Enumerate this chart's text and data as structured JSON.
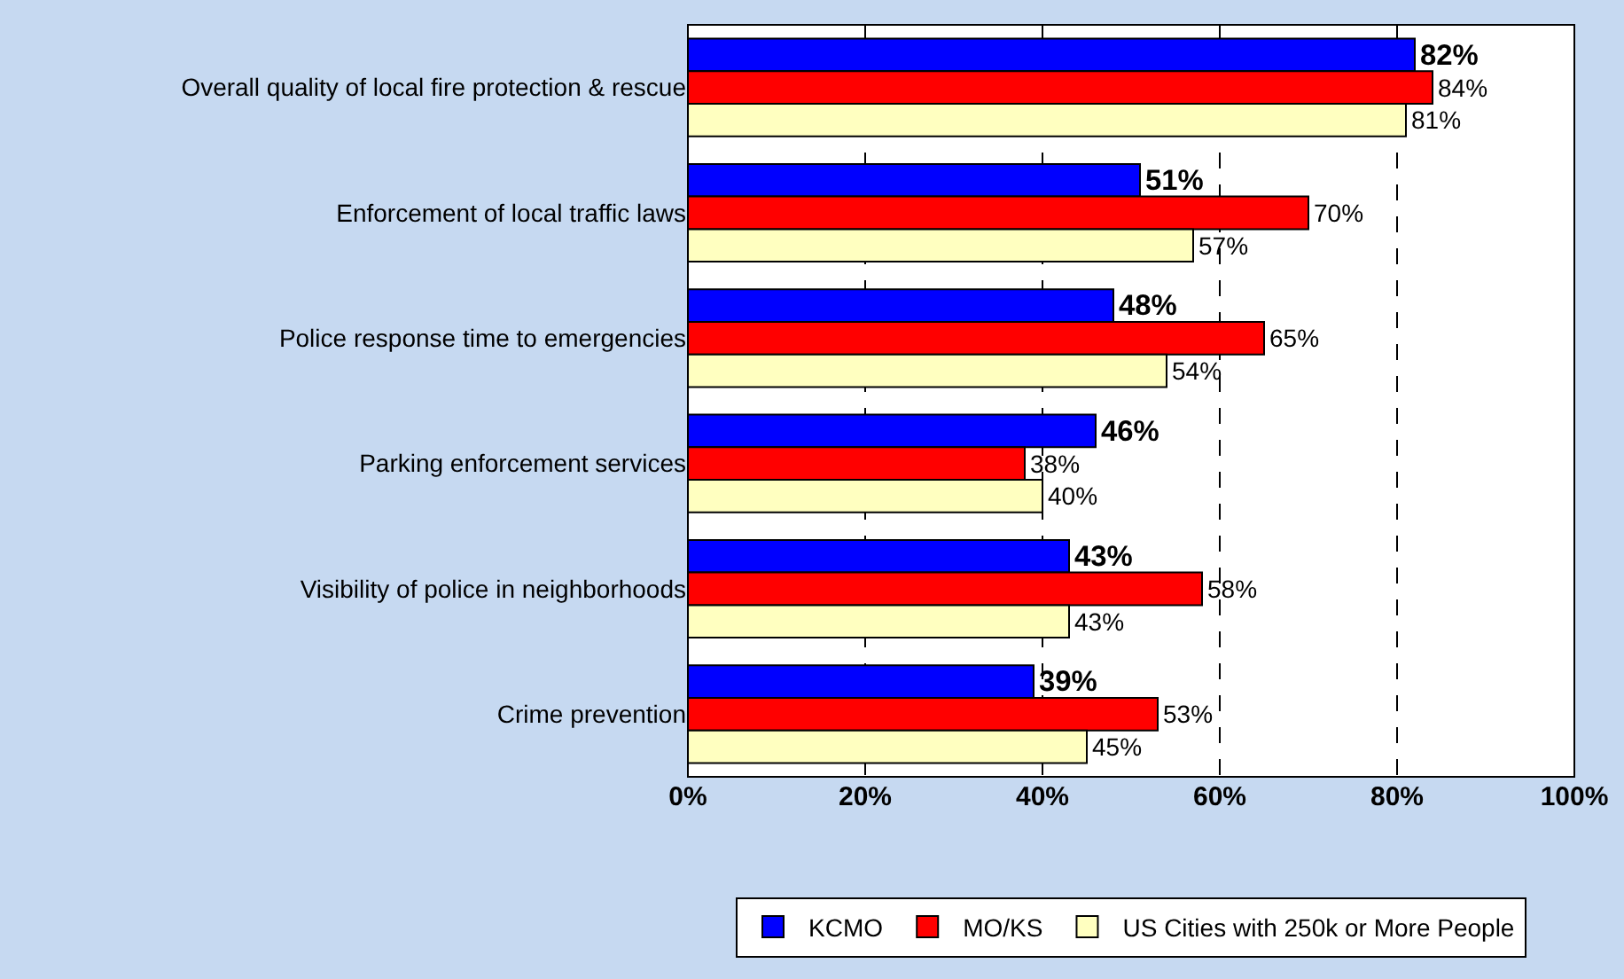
{
  "chart_data": {
    "type": "bar",
    "orientation": "horizontal",
    "categories": [
      "Overall quality of local fire protection & rescue",
      "Enforcement of local traffic laws",
      "Police response time to emergencies",
      "Parking enforcement services",
      "Visibility of police in neighborhoods",
      "Crime prevention"
    ],
    "series": [
      {
        "name": "KCMO",
        "color": "#0000ff",
        "values": [
          82,
          51,
          48,
          46,
          43,
          39
        ],
        "value_labels": [
          "82%",
          "51%",
          "48%",
          "46%",
          "43%",
          "39%"
        ]
      },
      {
        "name": "MO/KS",
        "color": "#ff0000",
        "values": [
          84,
          70,
          65,
          38,
          58,
          53
        ],
        "value_labels": [
          "84%",
          "70%",
          "65%",
          "38%",
          "58%",
          "53%"
        ]
      },
      {
        "name": "US Cities with 250k or More People",
        "color": "#ffffc0",
        "values": [
          81,
          57,
          54,
          40,
          43,
          45
        ],
        "value_labels": [
          "81%",
          "57%",
          "54%",
          "40%",
          "43%",
          "45%"
        ]
      }
    ],
    "xlim": [
      0,
      100
    ],
    "xticks": [
      {
        "value": 0,
        "label": "0%"
      },
      {
        "value": 20,
        "label": "20%"
      },
      {
        "value": 40,
        "label": "40%"
      },
      {
        "value": 60,
        "label": "60%"
      },
      {
        "value": 80,
        "label": "80%"
      },
      {
        "value": 100,
        "label": "100%"
      }
    ],
    "grid": "x",
    "line_style": "dashed",
    "legend": "bottom"
  }
}
